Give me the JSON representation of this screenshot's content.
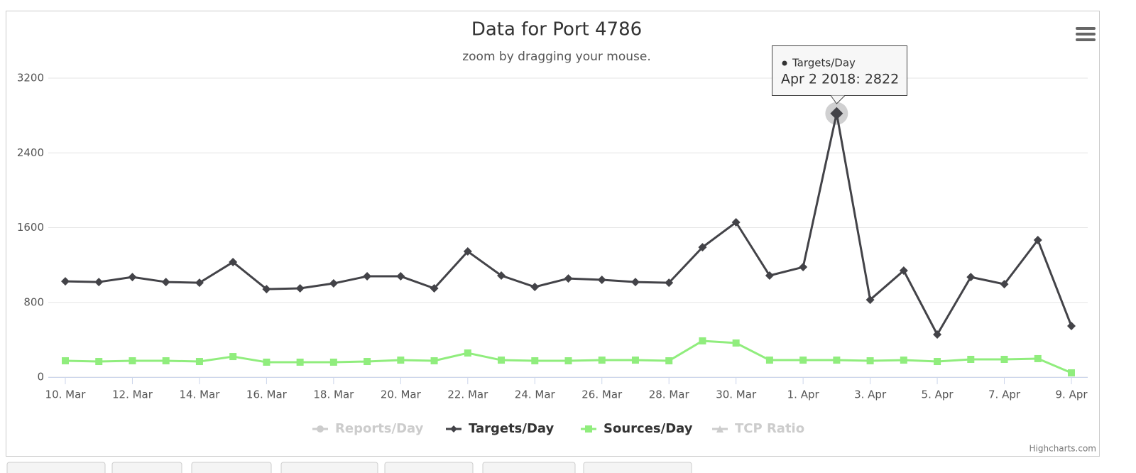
{
  "chart_data": {
    "type": "line",
    "title": "Data for Port 4786",
    "subtitle": "zoom by dragging your mouse.",
    "categories": [
      "10. Mar",
      null,
      "12. Mar",
      null,
      "14. Mar",
      null,
      "16. Mar",
      null,
      "18. Mar",
      null,
      "20. Mar",
      null,
      "22. Mar",
      null,
      "24. Mar",
      null,
      "26. Mar",
      null,
      "28. Mar",
      null,
      "30. Mar",
      null,
      "1. Apr",
      null,
      "3. Apr",
      null,
      "5. Apr",
      null,
      "7. Apr",
      null,
      "9. Apr"
    ],
    "ylim": [
      0,
      3200
    ],
    "yticks": [
      0,
      800,
      1600,
      2400,
      3200
    ],
    "grid": true,
    "series": [
      {
        "name": "Reports/Day",
        "color": "#cccccc",
        "marker": "circle",
        "visible": false
      },
      {
        "name": "Targets/Day",
        "color": "#434348",
        "marker": "diamond",
        "visible": true,
        "values": [
          1025,
          1018,
          1071,
          1018,
          1010,
          1231,
          942,
          950,
          1003,
          1079,
          1079,
          950,
          1345,
          1087,
          965,
          1056,
          1041,
          1018,
          1010,
          1390,
          1657,
          1087,
          1178,
          2822,
          828,
          1140,
          456,
          1071,
          995,
          1467,
          547
        ]
      },
      {
        "name": "Sources/Day",
        "color": "#90ed7d",
        "marker": "square",
        "visible": true,
        "values": [
          175,
          167,
          175,
          175,
          167,
          220,
          160,
          160,
          160,
          167,
          182,
          175,
          258,
          182,
          175,
          175,
          182,
          182,
          175,
          388,
          365,
          182,
          182,
          182,
          175,
          182,
          167,
          190,
          190,
          198,
          46
        ]
      },
      {
        "name": "TCP Ratio",
        "color": "#cccccc",
        "marker": "triangle",
        "visible": false
      }
    ],
    "tooltip": {
      "series": "Targets/Day",
      "text": "Apr 2 2018: 2822"
    },
    "credits": "Highcharts.com"
  }
}
